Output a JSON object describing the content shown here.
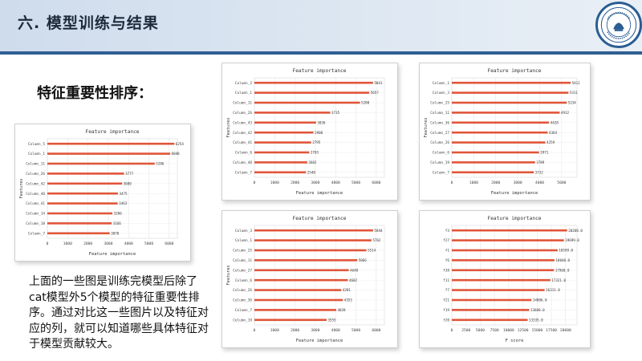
{
  "slide": {
    "title": "六. 模型训练与结果",
    "subtitle": "特征重要性排序：",
    "description": "上面的一些图是训练完模型后除了cat模型外5个模型的特征重要性排序。通过对比这一些图片以及特征对应的列，就可以知道哪些具体特征对于模型贡献较大。",
    "accent_color": "#2f5f93",
    "logo_icon": "university-seal-icon"
  },
  "chart_data": [
    {
      "type": "bar",
      "orientation": "horizontal",
      "title": "Feature importance",
      "xlabel": "Feature importance",
      "ylabel": "Features",
      "categories": [
        "Column_5",
        "Column_1",
        "Column_11",
        "Column_26",
        "Column_42",
        "Column_40",
        "Column_41",
        "Column_14",
        "Column_18",
        "Column_7"
      ],
      "values": [
        6254,
        6048,
        5286,
        3777,
        3680,
        3475,
        3463,
        3206,
        3166,
        3070
      ],
      "value_labels": [
        "6254",
        "6048",
        "5286",
        "3777",
        "3680",
        "3475",
        "3463",
        "3206",
        "3166",
        "3070"
      ],
      "xticks": [
        0,
        1000,
        2000,
        3000,
        4000,
        5000,
        6000
      ],
      "xlim": [
        0,
        6400
      ],
      "grid": true,
      "bar_color": "#e0563a"
    },
    {
      "type": "bar",
      "orientation": "horizontal",
      "title": "Feature importance",
      "xlabel": "Feature importance",
      "ylabel": "Features",
      "categories": [
        "Column_2",
        "Column_1",
        "Column_11",
        "Column_26",
        "Column_43",
        "Column_42",
        "Column_41",
        "Column_6",
        "Column_40",
        "Column_7"
      ],
      "values": [
        5841,
        5657,
        5200,
        3735,
        3036,
        2908,
        2795,
        2703,
        2602,
        2540
      ],
      "value_labels": [
        "5841",
        "5657",
        "5200",
        "3735",
        "3036",
        "2908",
        "2795",
        "2703",
        "2602",
        "2540"
      ],
      "xticks": [
        0,
        1000,
        2000,
        3000,
        4000,
        5000,
        6000
      ],
      "xlim": [
        0,
        6400
      ],
      "grid": true,
      "bar_color": "#e0563a"
    },
    {
      "type": "bar",
      "orientation": "horizontal",
      "title": "Feature importance",
      "xlabel": "Feature importance",
      "ylabel": "Features",
      "categories": [
        "Column_1",
        "Column_3",
        "Column_25",
        "Column_11",
        "Column_36",
        "Column_27",
        "Column_26",
        "Column_6",
        "Column_19",
        "Column_7"
      ],
      "values": [
        5412,
        5311,
        5234,
        4912,
        4428,
        4364,
        4259,
        3971,
        3789,
        3732
      ],
      "value_labels": [
        "5412",
        "5311",
        "5234",
        "4912",
        "4428",
        "4364",
        "4259",
        "3971",
        "3789",
        "3732"
      ],
      "xticks": [
        0,
        1000,
        2000,
        3000,
        4000,
        5000
      ],
      "xlim": [
        0,
        5700
      ],
      "grid": true,
      "bar_color": "#e0563a"
    },
    {
      "type": "bar",
      "orientation": "horizontal",
      "title": "Feature importance",
      "xlabel": "Feature importance",
      "ylabel": "Features",
      "categories": [
        "Column_3",
        "Column_1",
        "Column_25",
        "Column_11",
        "Column_27",
        "Column_6",
        "Column_26",
        "Column_36",
        "Column_7",
        "Column_19"
      ],
      "values": [
        5844,
        5762,
        5514,
        5066,
        4648,
        4602,
        4281,
        4353,
        4028,
        3555
      ],
      "value_labels": [
        "5844",
        "5762",
        "5514",
        "5066",
        "4648",
        "4602",
        "4281",
        "4353",
        "4028",
        "3555"
      ],
      "xticks": [
        0,
        1000,
        2000,
        3000,
        4000,
        5000,
        6000
      ],
      "xlim": [
        0,
        6400
      ],
      "grid": true,
      "bar_color": "#e0563a"
    },
    {
      "type": "bar",
      "orientation": "horizontal",
      "title": "Feature importance",
      "xlabel": "F score",
      "ylabel": "",
      "categories": [
        "f3",
        "f27",
        "f1",
        "f6",
        "f38",
        "f11",
        "f7",
        "f21",
        "f19",
        "f20"
      ],
      "values": [
        20268.0,
        19699.0,
        18599.0,
        18040.0,
        17960.0,
        17321.0,
        16311.0,
        14006.0,
        13608.0,
        13335.0
      ],
      "value_labels": [
        "20268.0",
        "19699.0",
        "18599.0",
        "18040.0",
        "17960.0",
        "17321.0",
        "16311.0",
        "14006.0",
        "13608.0",
        "13335.0"
      ],
      "xticks": [
        0,
        2500,
        5000,
        7500,
        10000,
        12500,
        15000,
        17500,
        20000
      ],
      "xlim": [
        0,
        22000
      ],
      "grid": true,
      "bar_color": "#e0563a"
    }
  ]
}
